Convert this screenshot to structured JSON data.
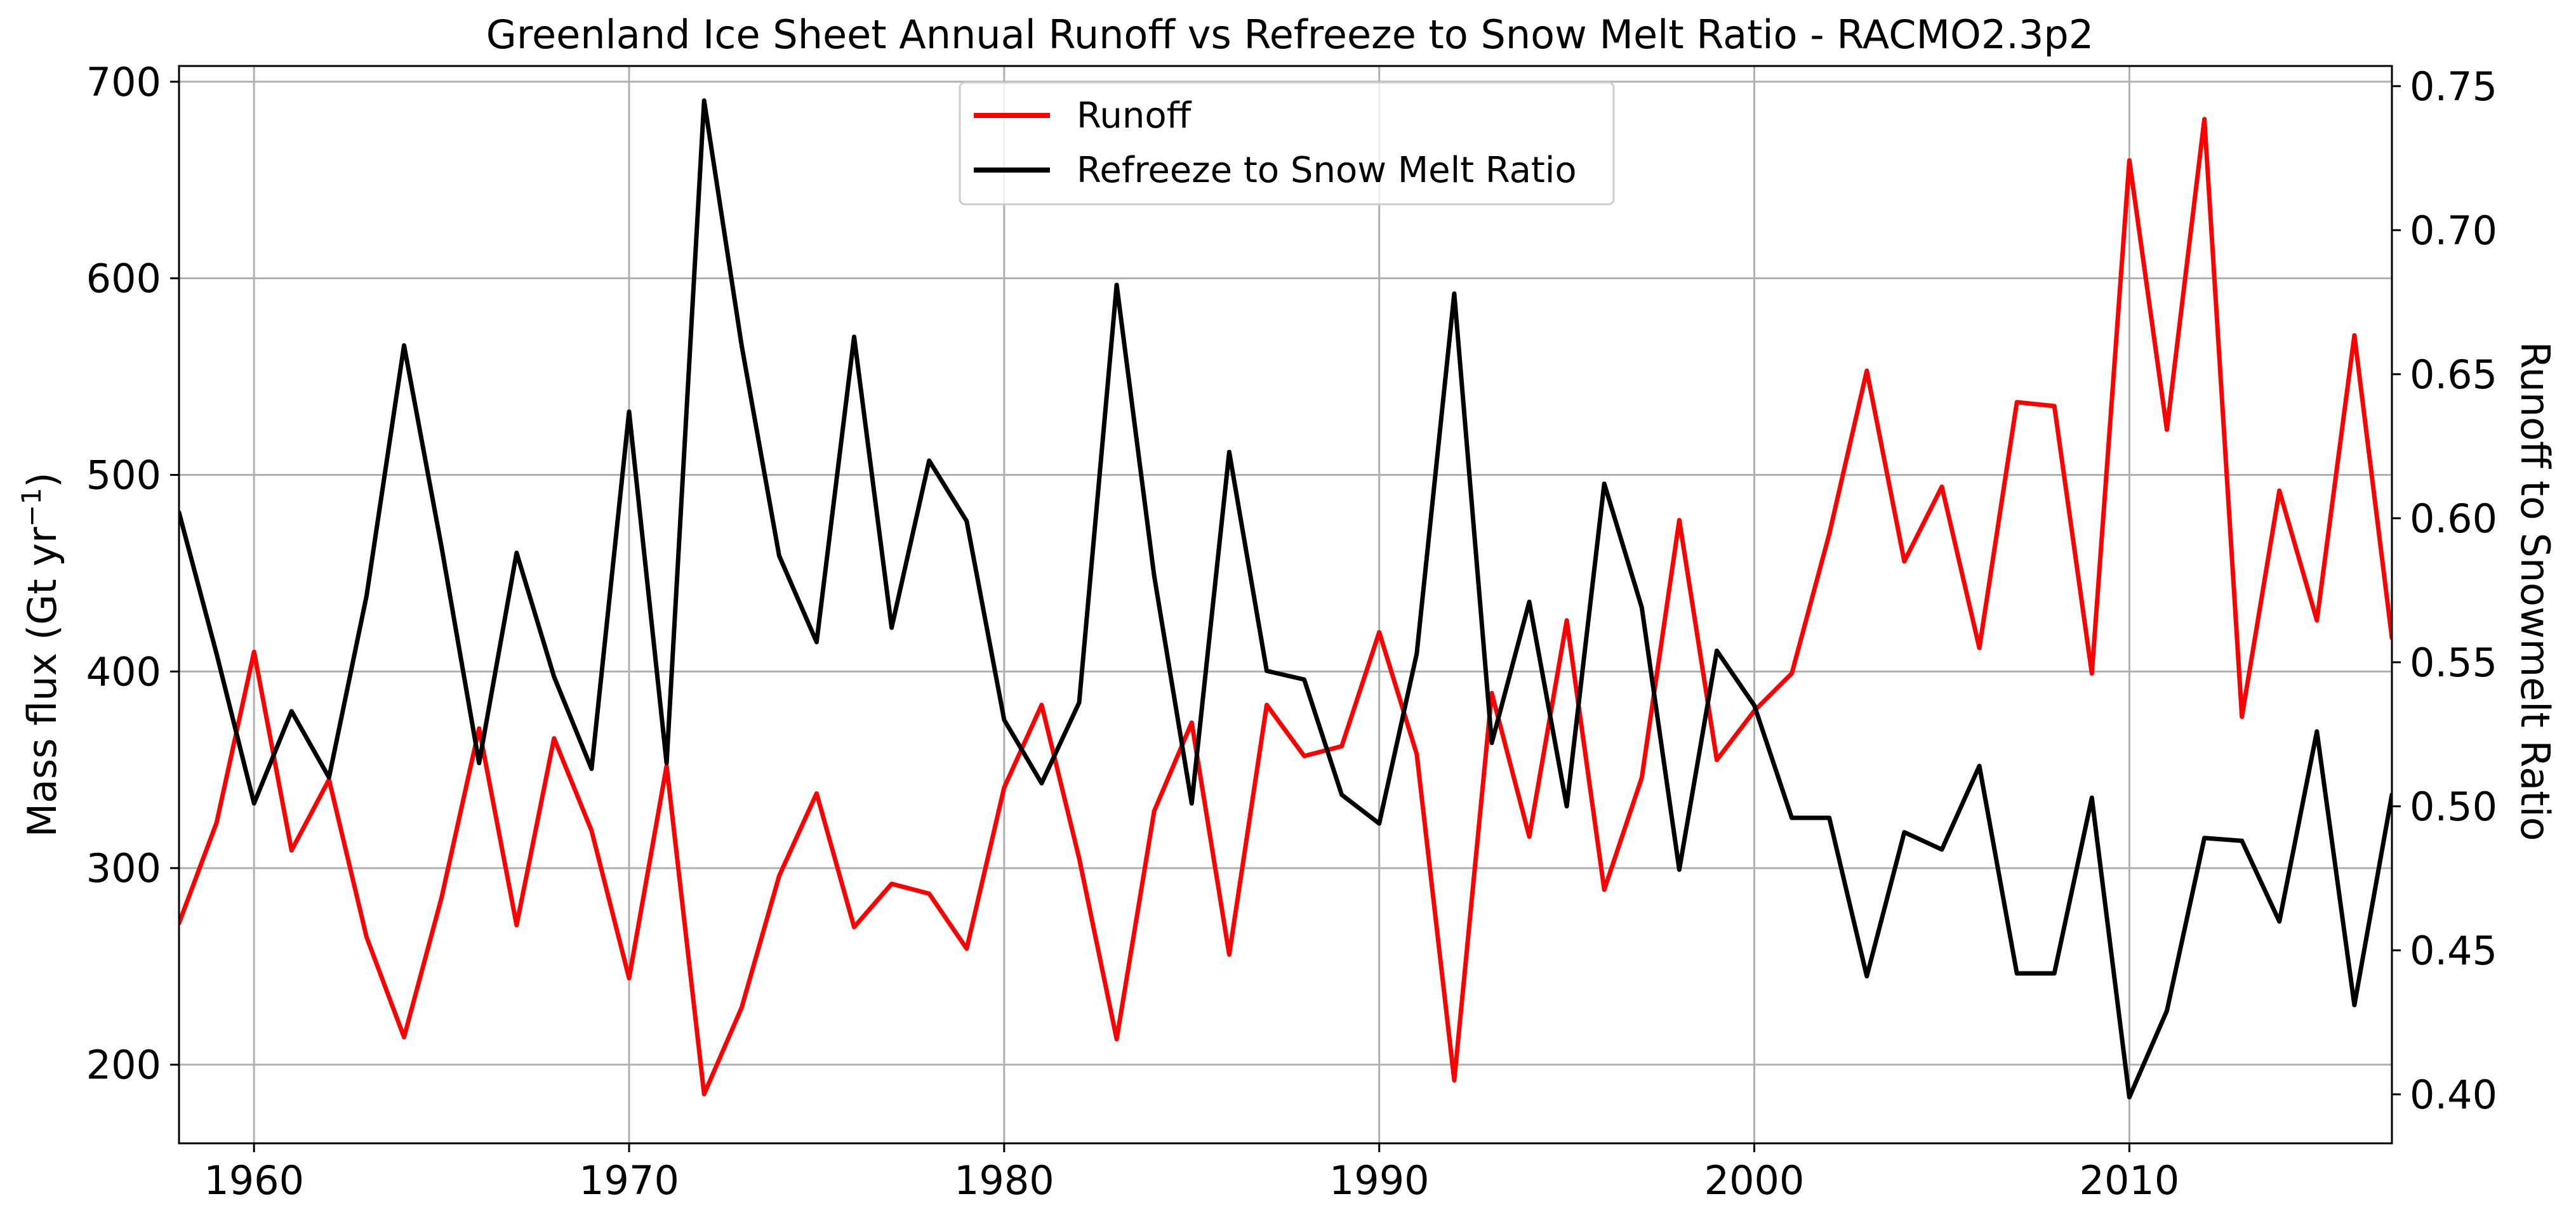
{
  "chart_data": {
    "type": "line",
    "title": "Greenland Ice Sheet Annual Runoff vs Refreeze to Snow Melt Ratio - RACMO2.3p2",
    "xlabel": "",
    "ylabel_left_main": "Mass flux (Gt yr",
    "ylabel_left_sup": "−1",
    "ylabel_left_end": ")",
    "ylabel_right": "Runoff to Snowmelt Ratio",
    "xlim": [
      1958,
      2017
    ],
    "ylim_left": [
      160,
      708
    ],
    "ylim_right": [
      0.383,
      0.757
    ],
    "grid": true,
    "legend_position": "top-center",
    "x_ticks": [
      1960,
      1970,
      1980,
      1990,
      2000,
      2010
    ],
    "x_tick_labels": [
      "1960",
      "1970",
      "1980",
      "1990",
      "2000",
      "2010"
    ],
    "y_left_ticks": [
      200,
      300,
      400,
      500,
      600,
      700
    ],
    "y_left_tick_labels": [
      "200",
      "300",
      "400",
      "500",
      "600",
      "700"
    ],
    "y_right_ticks": [
      0.4,
      0.45,
      0.5,
      0.55,
      0.6,
      0.65,
      0.7,
      0.75
    ],
    "y_right_tick_labels": [
      "0.40",
      "0.45",
      "0.50",
      "0.55",
      "0.60",
      "0.65",
      "0.70",
      "0.75"
    ],
    "x": [
      1958,
      1959,
      1960,
      1961,
      1962,
      1963,
      1964,
      1965,
      1966,
      1967,
      1968,
      1969,
      1970,
      1971,
      1972,
      1973,
      1974,
      1975,
      1976,
      1977,
      1978,
      1979,
      1980,
      1981,
      1982,
      1983,
      1984,
      1985,
      1986,
      1987,
      1988,
      1989,
      1990,
      1991,
      1992,
      1993,
      1994,
      1995,
      1996,
      1997,
      1998,
      1999,
      2000,
      2001,
      2002,
      2003,
      2004,
      2005,
      2006,
      2007,
      2008,
      2009,
      2010,
      2011,
      2012,
      2013,
      2014,
      2015,
      2016,
      2017
    ],
    "series": [
      {
        "name": "Runoff",
        "color": "#ff0000",
        "axis": "left",
        "values": [
          272,
          323,
          410,
          309,
          345,
          265,
          214,
          285,
          371,
          271,
          366,
          319,
          244,
          352,
          185,
          229,
          296,
          338,
          270,
          292,
          287,
          259,
          341,
          383,
          305,
          213,
          329,
          374,
          256,
          383,
          357,
          362,
          420,
          358,
          192,
          389,
          316,
          426,
          289,
          346,
          477,
          355,
          380,
          399,
          470,
          553,
          456,
          494,
          412,
          537,
          535,
          399,
          660,
          523,
          681,
          377,
          492,
          426,
          571,
          417
        ]
      },
      {
        "name": "Refreeze to Snow Melt Ratio",
        "color": "#000000",
        "axis": "right",
        "values": [
          0.602,
          0.553,
          0.501,
          0.533,
          0.51,
          0.573,
          0.66,
          0.59,
          0.515,
          0.588,
          0.545,
          0.513,
          0.637,
          0.515,
          0.745,
          0.66,
          0.587,
          0.557,
          0.663,
          0.562,
          0.62,
          0.599,
          0.53,
          0.508,
          0.536,
          0.681,
          0.58,
          0.501,
          0.623,
          0.547,
          0.544,
          0.504,
          0.494,
          0.553,
          0.678,
          0.522,
          0.571,
          0.5,
          0.612,
          0.569,
          0.478,
          0.554,
          0.535,
          0.496,
          0.496,
          0.441,
          0.491,
          0.485,
          0.514,
          0.442,
          0.442,
          0.503,
          0.399,
          0.429,
          0.489,
          0.488,
          0.46,
          0.526,
          0.431,
          0.504
        ]
      }
    ]
  }
}
